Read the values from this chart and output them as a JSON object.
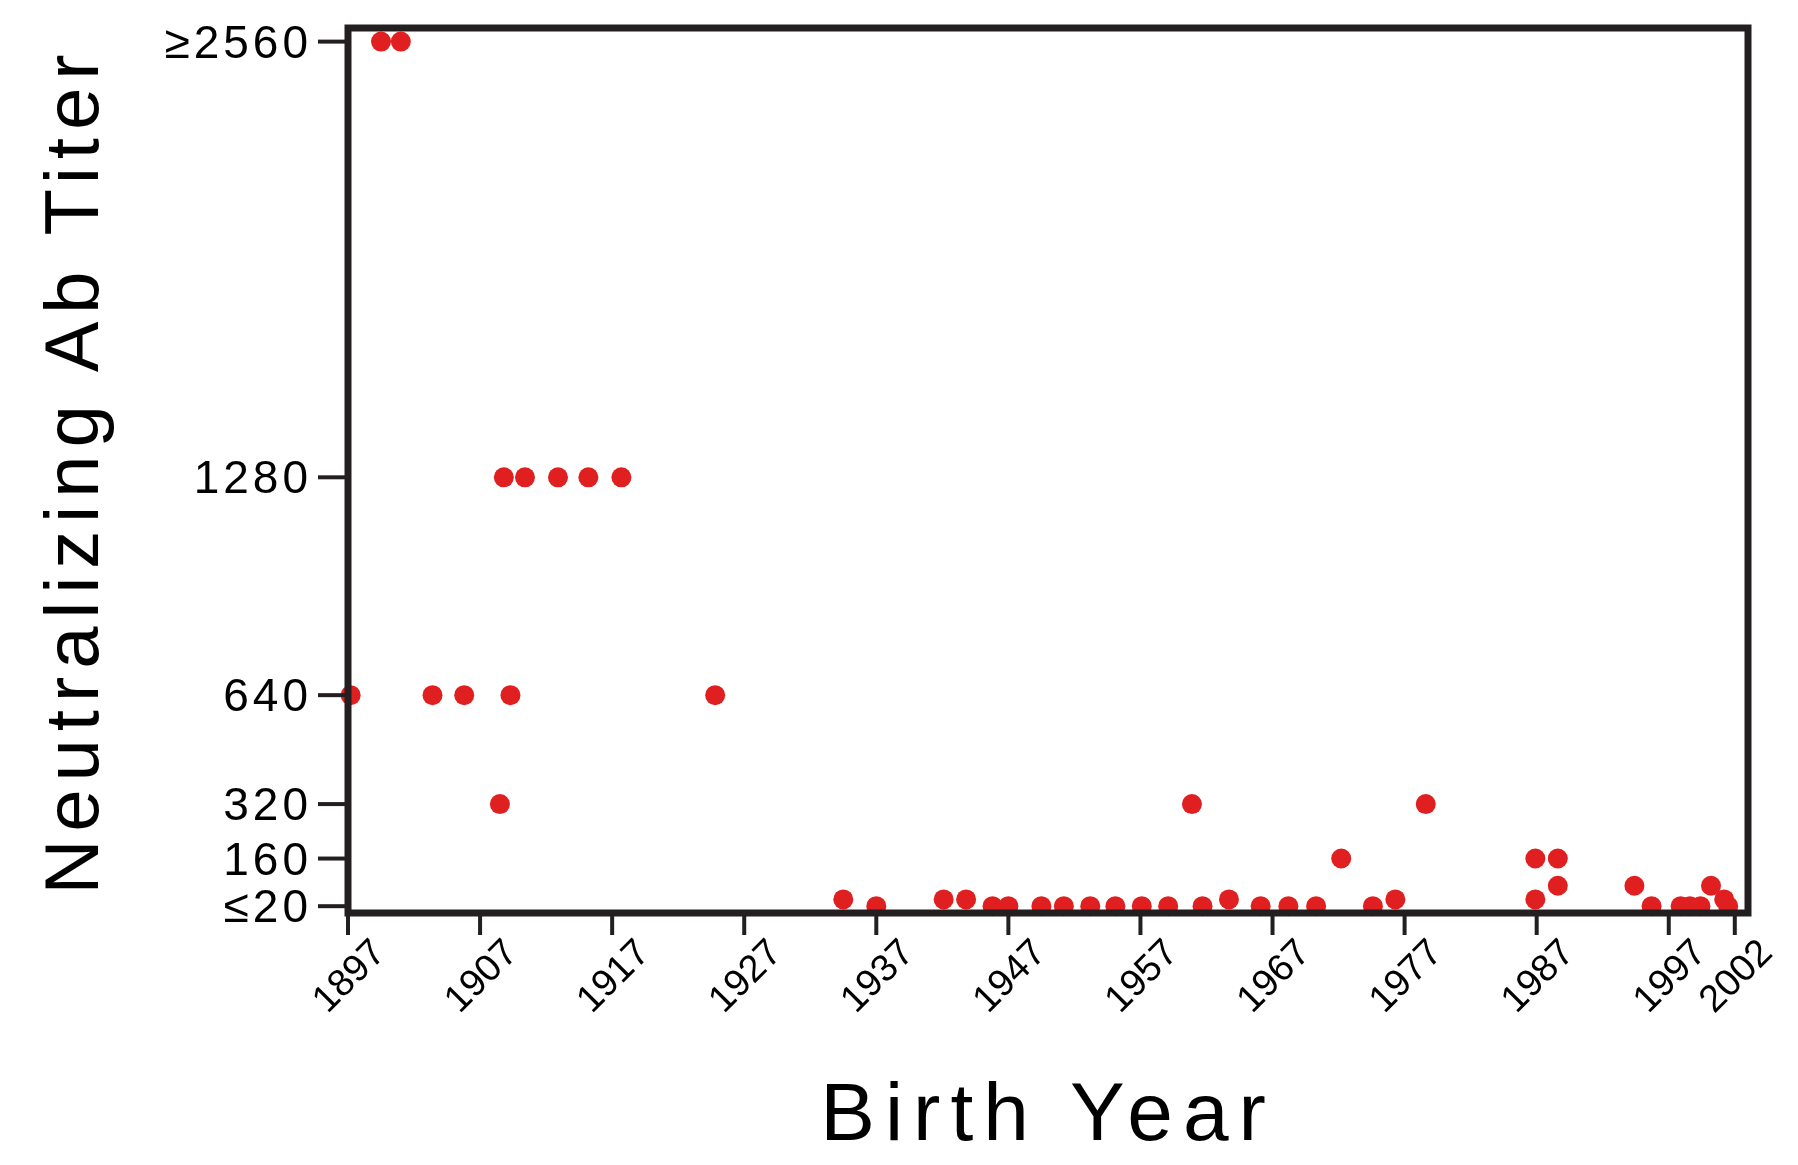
{
  "chart_data": {
    "type": "scatter",
    "xlabel": "Birth Year",
    "ylabel": "Neutralizing Ab Titer",
    "xlim": [
      1897,
      2003
    ],
    "xticks": [
      1897,
      1907,
      1917,
      1927,
      1937,
      1947,
      1957,
      1967,
      1977,
      1987,
      1997,
      2002
    ],
    "ylim": [
      0,
      2600
    ],
    "yticks": [
      {
        "value": 20,
        "label": "≤20"
      },
      160,
      320,
      640,
      1280,
      {
        "value": 2560,
        "label": "≥2560"
      }
    ],
    "grid": false,
    "marker": "circle",
    "series": [
      {
        "color": "#e02020",
        "x": [
          1897.2,
          1899.5,
          1901,
          1903.4,
          1905.8,
          1908.5,
          1908.8,
          1909.3,
          1910.4,
          1912.9,
          1915.2,
          1917.7,
          1924.8,
          1934.5,
          1937,
          1942.1,
          1943.8,
          1945.8,
          1947,
          1949.5,
          1951.2,
          1953.2,
          1955.1,
          1957.1,
          1959.1,
          1960.9,
          1961.7,
          1963.7,
          1966.1,
          1968.2,
          1970.3,
          1972.2,
          1974.6,
          1976.3,
          1978.6,
          1986.9,
          1986.9,
          1988.6,
          1988.6,
          1994.4,
          1995.7,
          1997.9,
          1998.6,
          1999.4,
          2000.2,
          2001.2,
          2001.5
        ],
        "values": [
          640,
          2560,
          2560,
          640,
          640,
          320,
          1280,
          640,
          1280,
          1280,
          1280,
          1280,
          640,
          40,
          20,
          40,
          40,
          20,
          20,
          20,
          20,
          20,
          20,
          20,
          20,
          320,
          20,
          40,
          20,
          20,
          20,
          160,
          20,
          40,
          320,
          160,
          40,
          160,
          80,
          80,
          20,
          20,
          20,
          20,
          80,
          40,
          20
        ]
      }
    ]
  }
}
